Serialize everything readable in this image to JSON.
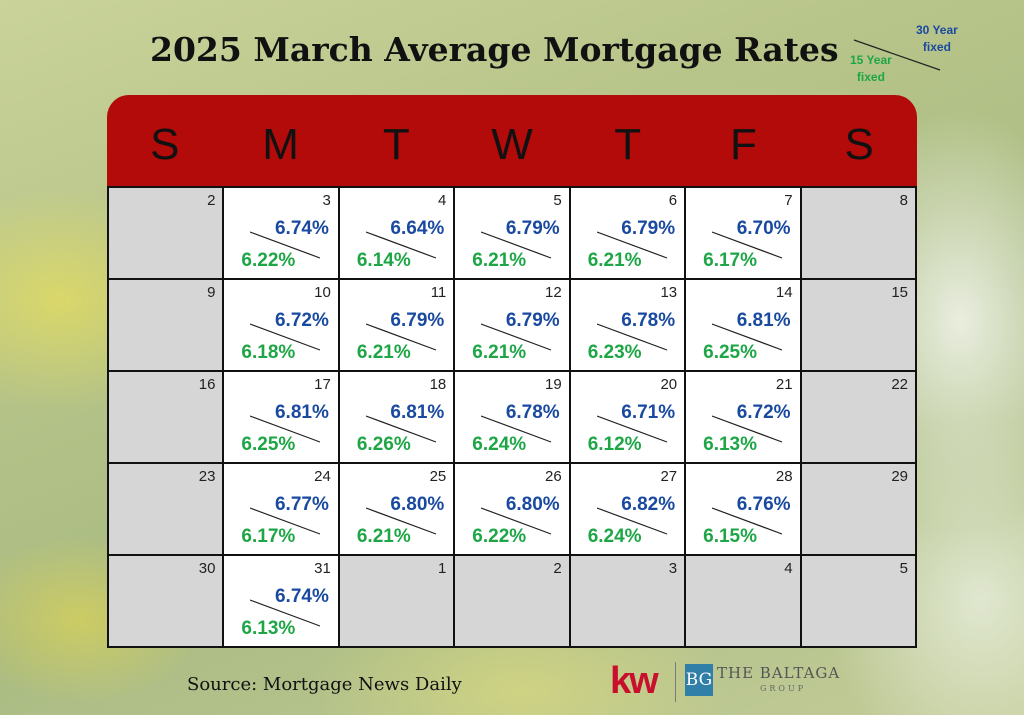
{
  "title": "2025 March Average Mortgage Rates",
  "legend": {
    "label_30": [
      "30 Year",
      "fixed"
    ],
    "label_15": [
      "15 Year",
      "fixed"
    ]
  },
  "days_of_week": [
    "S",
    "M",
    "T",
    "W",
    "T",
    "F",
    "S"
  ],
  "colors": {
    "header": "#b30a0a",
    "rate30": "#1a4aa0",
    "rate15": "#1ea646",
    "weekend": "#d6d6d6"
  },
  "weeks": [
    [
      {
        "day": "2",
        "gray": true
      },
      {
        "day": "3",
        "r30": "6.74%",
        "r15": "6.22%"
      },
      {
        "day": "4",
        "r30": "6.64%",
        "r15": "6.14%"
      },
      {
        "day": "5",
        "r30": "6.79%",
        "r15": "6.21%"
      },
      {
        "day": "6",
        "r30": "6.79%",
        "r15": "6.21%"
      },
      {
        "day": "7",
        "r30": "6.70%",
        "r15": "6.17%"
      },
      {
        "day": "8",
        "gray": true
      }
    ],
    [
      {
        "day": "9",
        "gray": true
      },
      {
        "day": "10",
        "r30": "6.72%",
        "r15": "6.18%"
      },
      {
        "day": "11",
        "r30": "6.79%",
        "r15": "6.21%"
      },
      {
        "day": "12",
        "r30": "6.79%",
        "r15": "6.21%"
      },
      {
        "day": "13",
        "r30": "6.78%",
        "r15": "6.23%"
      },
      {
        "day": "14",
        "r30": "6.81%",
        "r15": "6.25%"
      },
      {
        "day": "15",
        "gray": true
      }
    ],
    [
      {
        "day": "16",
        "gray": true
      },
      {
        "day": "17",
        "r30": "6.81%",
        "r15": "6.25%"
      },
      {
        "day": "18",
        "r30": "6.81%",
        "r15": "6.26%"
      },
      {
        "day": "19",
        "r30": "6.78%",
        "r15": "6.24%"
      },
      {
        "day": "20",
        "r30": "6.71%",
        "r15": "6.12%"
      },
      {
        "day": "21",
        "r30": "6.72%",
        "r15": "6.13%"
      },
      {
        "day": "22",
        "gray": true
      }
    ],
    [
      {
        "day": "23",
        "gray": true
      },
      {
        "day": "24",
        "r30": "6.77%",
        "r15": "6.17%"
      },
      {
        "day": "25",
        "r30": "6.80%",
        "r15": "6.21%"
      },
      {
        "day": "26",
        "r30": "6.80%",
        "r15": "6.22%"
      },
      {
        "day": "27",
        "r30": "6.82%",
        "r15": "6.24%"
      },
      {
        "day": "28",
        "r30": "6.76%",
        "r15": "6.15%"
      },
      {
        "day": "29",
        "gray": true
      }
    ],
    [
      {
        "day": "30",
        "gray": true
      },
      {
        "day": "31",
        "r30": "6.74%",
        "r15": "6.13%"
      },
      {
        "day": "1",
        "gray": true
      },
      {
        "day": "2",
        "gray": true
      },
      {
        "day": "3",
        "gray": true
      },
      {
        "day": "4",
        "gray": true
      },
      {
        "day": "5",
        "gray": true
      }
    ]
  ],
  "source": "Source: Mortgage News Daily",
  "logos": {
    "kw": "kw",
    "bg_mark": "BG",
    "brand": "THE BALTAGA",
    "brand_sub": "GROUP"
  }
}
